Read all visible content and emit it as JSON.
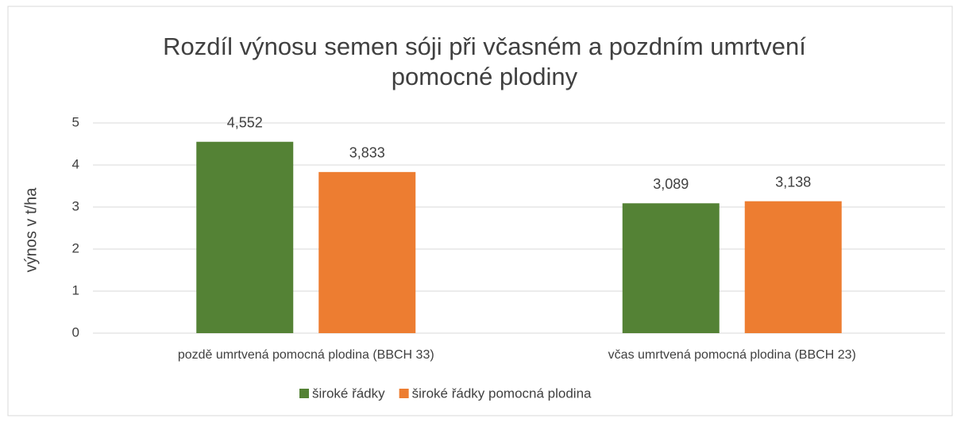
{
  "chart_data": {
    "type": "bar",
    "title": "Rozdíl výnosu semen sóji při včasném a pozdním umrtvení pomocné plodiny",
    "ylabel": "výnos v t/ha",
    "categories": [
      "pozdě umrtvená pomocná plodina (BBCH 33)",
      "včas umrtvená pomocná plodina (BBCH 23)"
    ],
    "series": [
      {
        "name": "široké řádky",
        "color": "#548235",
        "values": [
          4.552,
          3.089
        ],
        "value_labels": [
          "4,552",
          "3,089"
        ]
      },
      {
        "name": "široké řádky pomocná plodina",
        "color": "#ed7d31",
        "values": [
          3.833,
          3.138
        ],
        "value_labels": [
          "3,833",
          "3,138"
        ]
      }
    ],
    "ylim": [
      0,
      5
    ],
    "yticks": [
      0,
      1,
      2,
      3,
      4,
      5
    ],
    "grid": true,
    "legend": "bottom"
  }
}
